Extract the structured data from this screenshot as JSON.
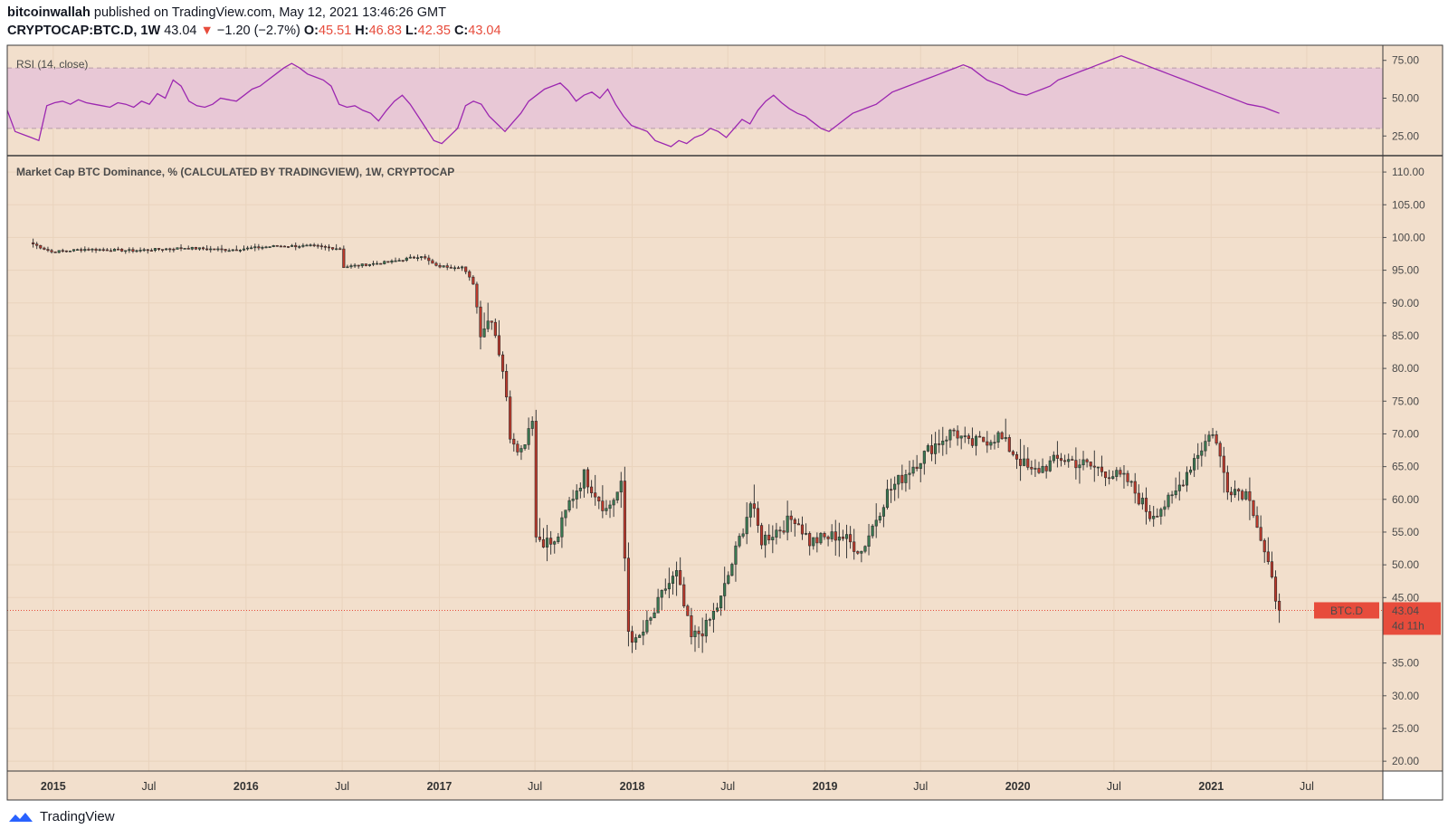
{
  "header": {
    "publisher": "bitcoinwallah",
    "published_text": "published on TradingView.com, May 12, 2021 13:46:26 GMT",
    "symbol": "CRYPTOCAP:BTC.D, 1W",
    "last": "43.04",
    "change": "−1.20 (−2.7%)",
    "o_label": "O:",
    "o_val": "45.51",
    "h_label": "H:",
    "h_val": "46.83",
    "l_label": "L:",
    "l_val": "42.35",
    "c_label": "C:",
    "c_val": "43.04",
    "arrow": "▼"
  },
  "footer": {
    "brand": "TradingView"
  },
  "colors": {
    "background": "#f2dfcc",
    "rsi_band": "#e8c8d6",
    "rsi_line": "#9c27b0",
    "up": "#3a7a52",
    "down": "#c0392b",
    "price_line": "#e74c3c"
  },
  "chart_data": [
    {
      "type": "line",
      "title": "RSI (14, close)",
      "ylim": [
        12,
        85
      ],
      "y_ticks": [
        "75.00",
        "50.00",
        "25.00"
      ],
      "bands": [
        30,
        70
      ],
      "x_labels": [
        "2015",
        "Jul",
        "2016",
        "Jul",
        "2017",
        "Jul",
        "2018",
        "Jul",
        "2019",
        "Jul",
        "2020",
        "Jul",
        "2021",
        "Jul"
      ],
      "series": [
        {
          "values": [
            42,
            28,
            26,
            24,
            22,
            45,
            47,
            48,
            46,
            49,
            47,
            46,
            45,
            44,
            47,
            46,
            44,
            48,
            46,
            53,
            50,
            62,
            58,
            48,
            45,
            44,
            46,
            50,
            49,
            48,
            52,
            56,
            58,
            62,
            66,
            70,
            73,
            70,
            66,
            64,
            62,
            58,
            46,
            44,
            45,
            42,
            40,
            35,
            42,
            48,
            52,
            46,
            38,
            30,
            22,
            20,
            25,
            30,
            45,
            48,
            46,
            38,
            33,
            28,
            34,
            40,
            48,
            52,
            56,
            58,
            60,
            55,
            48,
            52,
            54,
            50,
            56,
            46,
            38,
            32,
            30,
            28,
            22,
            20,
            18,
            22,
            20,
            24,
            26,
            30,
            28,
            24,
            30,
            36,
            33,
            42,
            48,
            52,
            47,
            43,
            40,
            38,
            34,
            30,
            28,
            32,
            36,
            40,
            42,
            44,
            46,
            50,
            54,
            56,
            58,
            60,
            62,
            64,
            66,
            68,
            70,
            72,
            70,
            66,
            62,
            60,
            58,
            55,
            53,
            52,
            54,
            56,
            58,
            62,
            64,
            66,
            68,
            70,
            72,
            74,
            76,
            78,
            76,
            74,
            72,
            70,
            68,
            66,
            64,
            62,
            60,
            58,
            56,
            54,
            52,
            50,
            48,
            46,
            45,
            44,
            42,
            40
          ]
        }
      ]
    },
    {
      "type": "candlestick",
      "title": "Market Cap BTC Dominance, % (CALCULATED BY TRADINGVIEW), 1W, CRYPTOCAP",
      "ylim": [
        18.5,
        112.5
      ],
      "y_ticks": [
        "110.00",
        "105.00",
        "100.00",
        "95.00",
        "90.00",
        "85.00",
        "80.00",
        "75.00",
        "70.00",
        "65.00",
        "60.00",
        "55.00",
        "50.00",
        "45.00",
        "40.00",
        "35.00",
        "30.00",
        "25.00",
        "20.00"
      ],
      "x_labels": [
        "2015",
        "Jul",
        "2016",
        "Jul",
        "2017",
        "Jul",
        "2018",
        "Jul",
        "2019",
        "Jul",
        "2020",
        "Jul",
        "2021",
        "Jul"
      ],
      "last_value": 43.04,
      "last_label": "43.04",
      "symbol_tag": "BTC.D",
      "countdown": "4d 11h",
      "close_path": [
        [
          "2014-11-24",
          99.0
        ],
        [
          "2014-12-29",
          97.8
        ],
        [
          "2015-03-02",
          98.2
        ],
        [
          "2015-06-01",
          98.0
        ],
        [
          "2015-09-07",
          98.4
        ],
        [
          "2015-11-30",
          98.1
        ],
        [
          "2016-02-29",
          98.7
        ],
        [
          "2016-05-02",
          98.7
        ],
        [
          "2016-06-27",
          98.3
        ],
        [
          "2016-07-04",
          95.5
        ],
        [
          "2016-10-03",
          96.3
        ],
        [
          "2016-11-28",
          97.2
        ],
        [
          "2016-12-26",
          95.6
        ],
        [
          "2017-02-13",
          95.5
        ],
        [
          "2017-03-06",
          93.0
        ],
        [
          "2017-03-20",
          85.8
        ],
        [
          "2017-04-10",
          88.0
        ],
        [
          "2017-05-01",
          80.0
        ],
        [
          "2017-05-15",
          70.0
        ],
        [
          "2017-06-05",
          67.5
        ],
        [
          "2017-06-26",
          72.8
        ],
        [
          "2017-07-03",
          54.3
        ],
        [
          "2017-08-07",
          53.0
        ],
        [
          "2017-09-04",
          59.5
        ],
        [
          "2017-10-02",
          63.7
        ],
        [
          "2017-11-13",
          58.4
        ],
        [
          "2017-12-11",
          61.9
        ],
        [
          "2017-12-25",
          40.0
        ],
        [
          "2018-01-08",
          38.0
        ],
        [
          "2018-02-05",
          41.5
        ],
        [
          "2018-03-05",
          46.5
        ],
        [
          "2018-03-26",
          48.5
        ],
        [
          "2018-04-23",
          38.7
        ],
        [
          "2018-05-21",
          40.5
        ],
        [
          "2018-06-18",
          44.7
        ],
        [
          "2018-08-13",
          59.4
        ],
        [
          "2018-09-03",
          53.8
        ],
        [
          "2018-10-08",
          55.6
        ],
        [
          "2018-11-05",
          57.3
        ],
        [
          "2018-12-03",
          53.5
        ],
        [
          "2019-01-28",
          54.6
        ],
        [
          "2019-03-11",
          52.1
        ],
        [
          "2019-04-29",
          61.0
        ],
        [
          "2019-06-10",
          64.6
        ],
        [
          "2019-07-22",
          68.0
        ],
        [
          "2019-09-02",
          70.5
        ],
        [
          "2019-09-30",
          68.3
        ],
        [
          "2019-11-25",
          69.7
        ],
        [
          "2020-01-27",
          64.0
        ],
        [
          "2020-03-23",
          66.3
        ],
        [
          "2020-06-01",
          64.7
        ],
        [
          "2020-07-27",
          62.8
        ],
        [
          "2020-09-07",
          57.6
        ],
        [
          "2020-10-19",
          60.0
        ],
        [
          "2020-11-30",
          66.3
        ],
        [
          "2021-01-04",
          70.5
        ],
        [
          "2021-02-01",
          62.0
        ],
        [
          "2021-03-15",
          60.7
        ],
        [
          "2021-04-12",
          51.6
        ],
        [
          "2021-05-10",
          43.04
        ]
      ]
    }
  ]
}
